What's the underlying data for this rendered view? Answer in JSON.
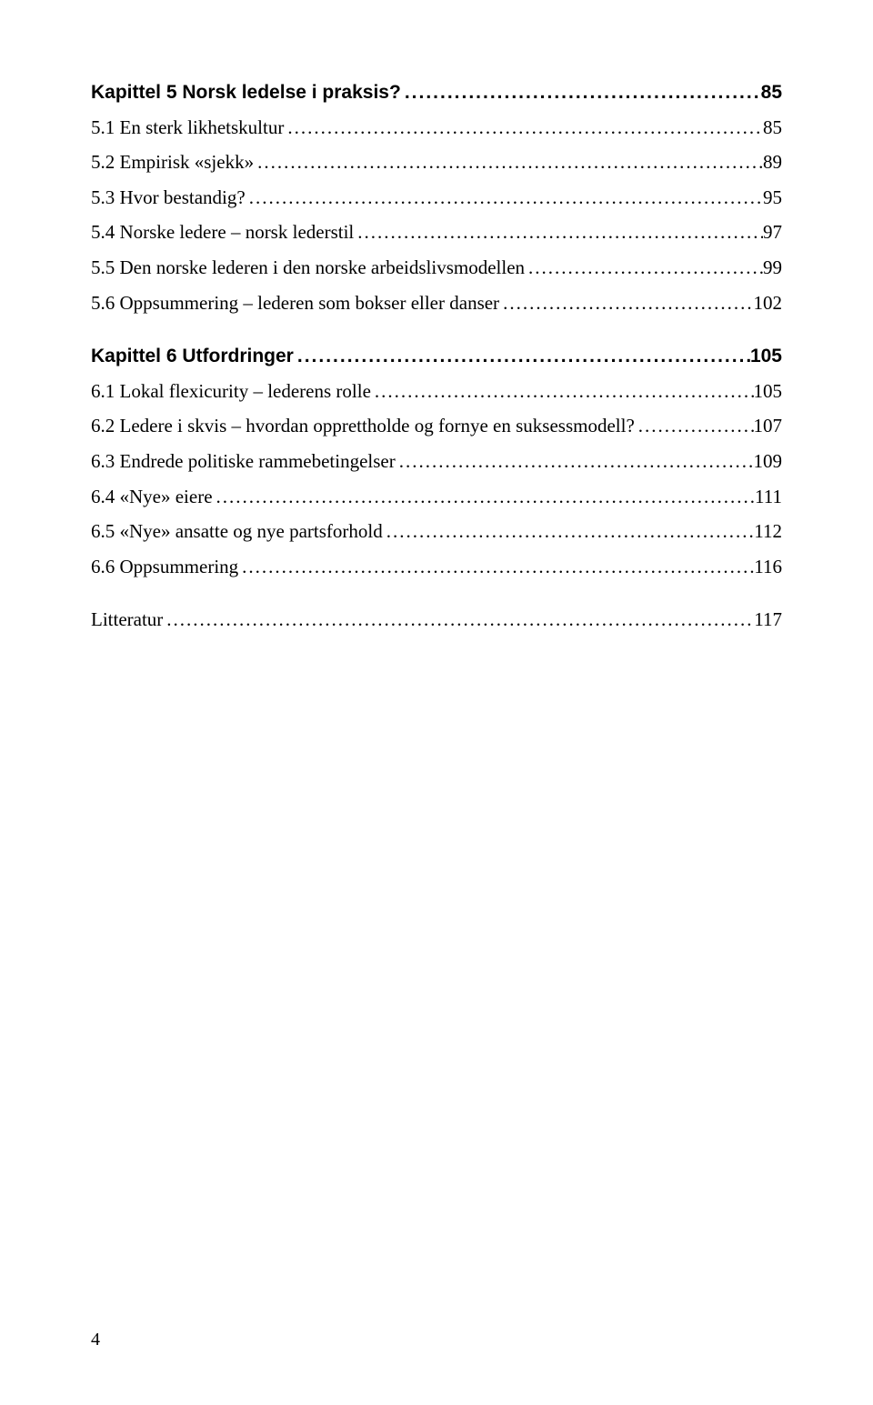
{
  "entries": [
    {
      "title": "Kapittel 5 Norsk ledelse i praksis?",
      "page": "85",
      "bold": true,
      "gap_before": false
    },
    {
      "title": "5.1 En sterk likhetskultur",
      "page": "85",
      "bold": false,
      "gap_before": false
    },
    {
      "title": "5.2 Empirisk «sjekk»",
      "page": "89",
      "bold": false,
      "gap_before": false
    },
    {
      "title": "5.3 Hvor bestandig?",
      "page": "95",
      "bold": false,
      "gap_before": false
    },
    {
      "title": "5.4 Norske ledere – norsk lederstil",
      "page": "97",
      "bold": false,
      "gap_before": false
    },
    {
      "title": "5.5 Den norske lederen i den norske arbeidslivsmodellen",
      "page": "99",
      "bold": false,
      "gap_before": false
    },
    {
      "title": "5.6 Oppsummering – lederen som bokser eller danser",
      "page": "102",
      "bold": false,
      "gap_before": false
    },
    {
      "title": "Kapittel 6 Utfordringer",
      "page": "105",
      "bold": true,
      "gap_before": true
    },
    {
      "title": "6.1 Lokal flexicurity – lederens rolle",
      "page": "105",
      "bold": false,
      "gap_before": false
    },
    {
      "title": "6.2 Ledere i skvis – hvordan opprettholde og fornye en suksessmodell?",
      "page": "107",
      "bold": false,
      "gap_before": false
    },
    {
      "title": "6.3 Endrede politiske rammebetingelser",
      "page": "109",
      "bold": false,
      "gap_before": false
    },
    {
      "title": "6.4 «Nye» eiere",
      "page": "111",
      "bold": false,
      "gap_before": false
    },
    {
      "title": "6.5 «Nye» ansatte og nye partsforhold",
      "page": "112",
      "bold": false,
      "gap_before": false
    },
    {
      "title": "6.6 Oppsummering",
      "page": "116",
      "bold": false,
      "gap_before": false
    },
    {
      "title": "Litteratur",
      "page": "117",
      "bold": false,
      "gap_before": true
    }
  ],
  "page_number": "4",
  "dots_fill": "........................................................................................................................................................................................................"
}
